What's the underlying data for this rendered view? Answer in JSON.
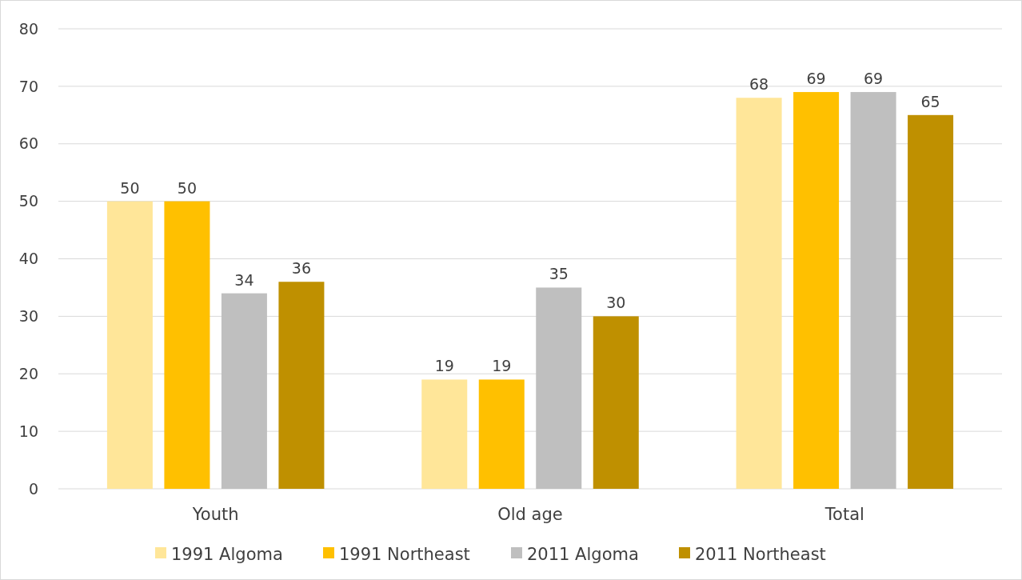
{
  "chart_data": {
    "type": "bar",
    "categories": [
      "Youth",
      "Old age",
      "Total"
    ],
    "series": [
      {
        "name": "1991 Algoma",
        "color": "#ffe699",
        "values": [
          50,
          19,
          68
        ]
      },
      {
        "name": "1991 Northeast",
        "color": "#ffc000",
        "values": [
          50,
          19,
          69
        ]
      },
      {
        "name": "2011 Algoma",
        "color": "#bfbfbf",
        "values": [
          34,
          35,
          69
        ]
      },
      {
        "name": "2011 Northeast",
        "color": "#bf9000",
        "values": [
          36,
          30,
          65
        ]
      }
    ],
    "ylim": [
      0,
      80
    ],
    "yticks": [
      0,
      10,
      20,
      30,
      40,
      50,
      60,
      70,
      80
    ],
    "grid": "y",
    "data_labels": true,
    "legend": "bottom"
  }
}
